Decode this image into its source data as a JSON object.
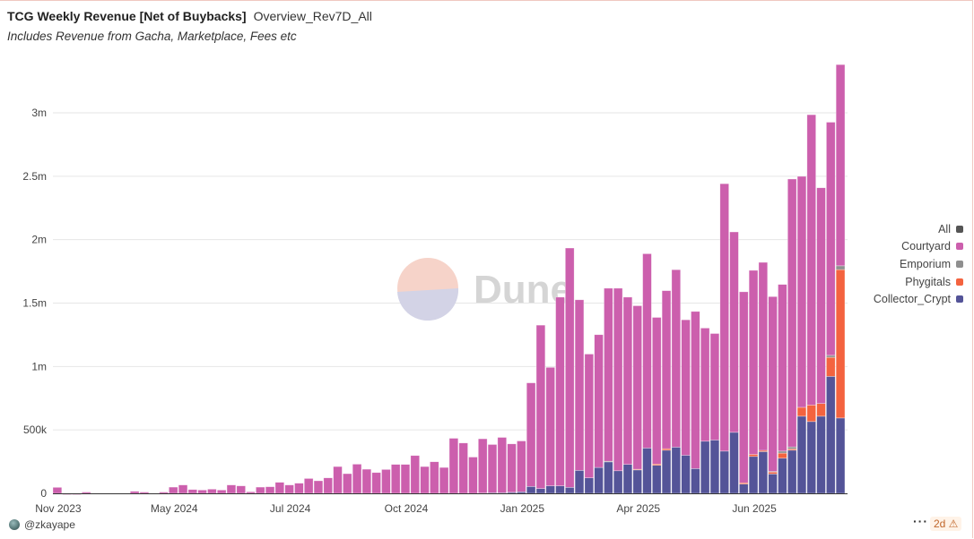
{
  "header": {
    "title": "TCG Weekly Revenue [Net of Buybacks]",
    "query_name": "Overview_Rev7D_All",
    "subtitle": "Includes Revenue from Gacha, Marketplace, Fees etc"
  },
  "watermark": "Dune",
  "footer": {
    "user": "@zkayape",
    "more": "···",
    "age_badge": "2d ⚠"
  },
  "chart_data": {
    "type": "bar",
    "stacked": true,
    "title": "TCG Weekly Revenue [Net of Buybacks]",
    "xlabel": "",
    "ylabel": "",
    "value_unit": "thousands USD",
    "ylim": [
      0,
      3400
    ],
    "yticks": [
      0,
      500,
      1000,
      1500,
      2000,
      2500,
      3000
    ],
    "ytick_labels": [
      "0",
      "500k",
      "1m",
      "1.5m",
      "2m",
      "2.5m",
      "3m"
    ],
    "xtick_labels": [
      {
        "label": "Nov 2023",
        "index": 0
      },
      {
        "label": "May 2024",
        "index": 12
      },
      {
        "label": "Jul 2024",
        "index": 24
      },
      {
        "label": "Oct 2024",
        "index": 36
      },
      {
        "label": "Jan 2025",
        "index": 48
      },
      {
        "label": "Apr 2025",
        "index": 60
      },
      {
        "label": "Jun 2025",
        "index": 72
      }
    ],
    "grid": true,
    "legend_position": "right",
    "legend": [
      {
        "name": "All",
        "color": "#555555"
      },
      {
        "name": "Courtyard",
        "color": "#cc5fad"
      },
      {
        "name": "Emporium",
        "color": "#8f8f8f"
      },
      {
        "name": "Phygitals",
        "color": "#f4633f"
      },
      {
        "name": "Collector_Crypt",
        "color": "#545498"
      }
    ],
    "series": [
      {
        "name": "Collector_Crypt",
        "color": "#545498",
        "values": [
          0,
          0,
          0,
          0,
          0,
          0,
          0,
          0,
          0,
          0,
          0,
          0,
          0,
          0,
          0,
          0,
          0,
          0,
          0,
          0,
          0,
          0,
          0,
          0,
          0,
          0,
          0,
          0,
          0,
          0,
          0,
          0,
          0,
          0,
          0,
          0,
          0,
          0,
          0,
          0,
          0,
          0,
          0,
          0,
          2,
          4,
          4,
          8,
          12,
          54,
          38,
          59,
          59,
          47,
          181,
          122,
          204,
          249,
          178,
          228,
          185,
          357,
          221,
          340,
          364,
          300,
          195,
          411,
          420,
          333,
          481,
          73,
          291,
          329,
          153,
          277,
          340,
          608,
          566,
          608,
          922,
          594
        ]
      },
      {
        "name": "Phygitals",
        "color": "#f4633f",
        "values": [
          0,
          0,
          0,
          0,
          0,
          0,
          0,
          0,
          0,
          0,
          0,
          0,
          0,
          0,
          0,
          0,
          0,
          0,
          0,
          0,
          0,
          0,
          0,
          0,
          0,
          0,
          0,
          0,
          0,
          0,
          0,
          0,
          0,
          0,
          0,
          0,
          0,
          0,
          0,
          0,
          0,
          0,
          0,
          0,
          0,
          0,
          0,
          0,
          0,
          0,
          0,
          0,
          0,
          0,
          0,
          0,
          0,
          0,
          0,
          0,
          5,
          0,
          10,
          12,
          0,
          0,
          0,
          0,
          0,
          0,
          0,
          10,
          16,
          10,
          15,
          40,
          10,
          70,
          130,
          100,
          150,
          1170
        ]
      },
      {
        "name": "Emporium",
        "color": "#8f8f8f",
        "values": [
          0,
          0,
          0,
          0,
          0,
          0,
          0,
          0,
          0,
          0,
          0,
          0,
          0,
          0,
          0,
          0,
          0,
          0,
          0,
          0,
          0,
          0,
          0,
          0,
          0,
          0,
          0,
          0,
          0,
          0,
          0,
          0,
          0,
          0,
          0,
          0,
          0,
          0,
          0,
          0,
          0,
          0,
          0,
          0,
          0,
          0,
          0,
          0,
          0,
          0,
          0,
          0,
          0,
          0,
          0,
          0,
          0,
          4,
          0,
          0,
          0,
          0,
          0,
          0,
          0,
          0,
          0,
          0,
          0,
          0,
          0,
          0,
          0,
          0,
          5,
          16,
          16,
          0,
          0,
          0,
          16,
          30
        ]
      },
      {
        "name": "Courtyard",
        "color": "#cc5fad",
        "values": [
          47,
          -10,
          -10,
          10,
          0,
          -5,
          0,
          0,
          16,
          10,
          0,
          10,
          49,
          66,
          30,
          26,
          33,
          26,
          66,
          59,
          12,
          49,
          52,
          87,
          66,
          80,
          117,
          99,
          122,
          211,
          155,
          230,
          190,
          164,
          188,
          228,
          228,
          298,
          211,
          249,
          204,
          434,
          397,
          286,
          428,
          381,
          437,
          382,
          401,
          817,
          1288,
          934,
          1488,
          1887,
          1345,
          976,
          1047,
          1364,
          1439,
          1319,
          1289,
          1532,
          1156,
          1246,
          1399,
          1068,
          1239,
          892,
          840,
          2108,
          1580,
          1506,
          1451,
          1482,
          1378,
          1314,
          2112,
          1821,
          2289,
          1701,
          1838,
          1586
        ]
      }
    ]
  }
}
